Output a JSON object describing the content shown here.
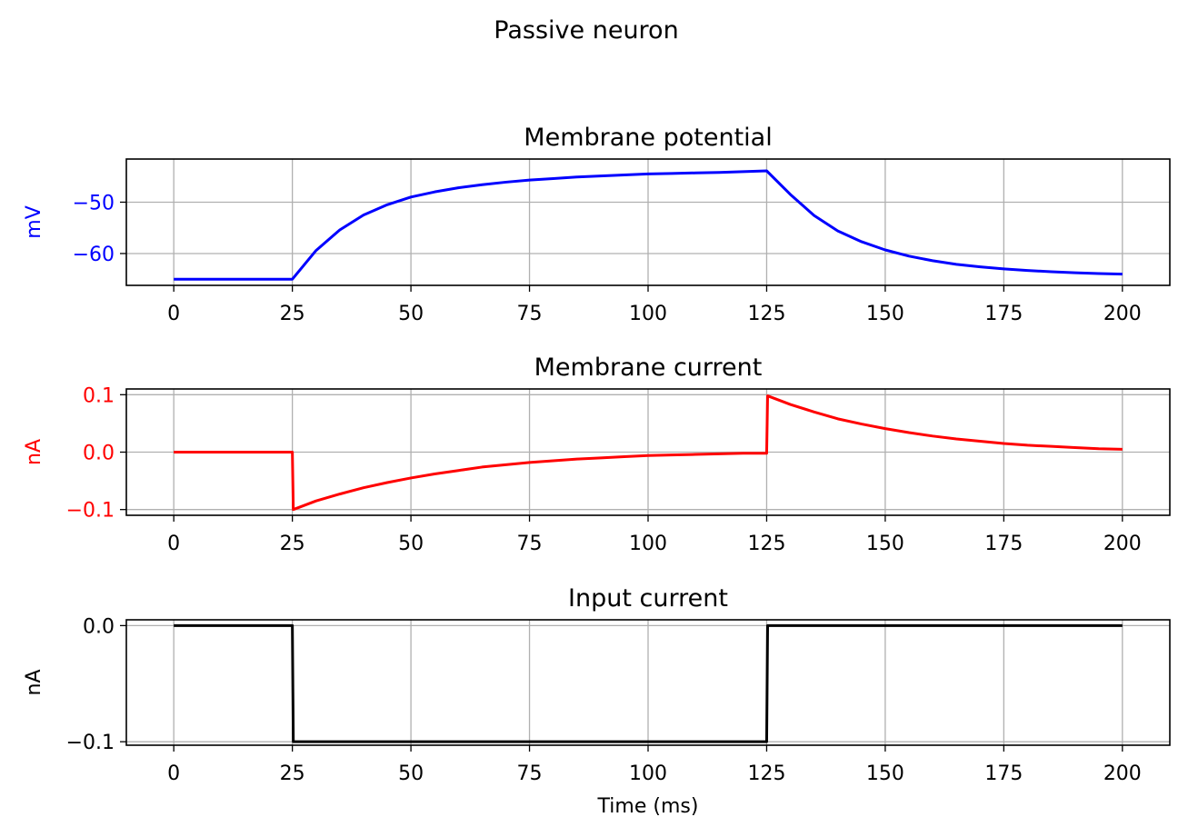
{
  "figure": {
    "title": "Passive neuron"
  },
  "chart_data": [
    {
      "type": "line",
      "title": "Membrane potential",
      "xlabel": "",
      "ylabel": "mV",
      "ylabel_color": "#0000ff",
      "tick_color": "#0000ff",
      "line_color": "#0000ff",
      "grid": true,
      "xlim": [
        -10,
        210
      ],
      "ylim": [
        -66.2,
        -41.6
      ],
      "xticks": [
        0,
        25,
        50,
        75,
        100,
        125,
        150,
        175,
        200
      ],
      "yticks": [
        -60,
        -50
      ],
      "ytick_labels": [
        "−60",
        "−50"
      ],
      "series": [
        {
          "x": [
            0,
            25,
            30,
            35,
            40,
            45,
            50,
            55,
            60,
            65,
            70,
            75,
            80,
            85,
            90,
            95,
            100,
            105,
            110,
            115,
            120,
            125,
            130,
            135,
            140,
            145,
            150,
            155,
            160,
            165,
            170,
            175,
            180,
            185,
            190,
            195,
            200
          ],
          "values": [
            -65,
            -65,
            -59.4,
            -55.4,
            -52.5,
            -50.5,
            -49,
            -48,
            -47.2,
            -46.6,
            -46.1,
            -45.7,
            -45.4,
            -45.1,
            -44.9,
            -44.7,
            -44.5,
            -44.4,
            -44.3,
            -44.2,
            -44.05,
            -43.9,
            -48.5,
            -52.6,
            -55.6,
            -57.7,
            -59.3,
            -60.5,
            -61.4,
            -62.1,
            -62.6,
            -63.0,
            -63.3,
            -63.55,
            -63.75,
            -63.9,
            -64.0
          ]
        }
      ]
    },
    {
      "type": "line",
      "title": "Membrane current",
      "xlabel": "",
      "ylabel": "nA",
      "ylabel_color": "#ff0000",
      "tick_color": "#ff0000",
      "line_color": "#ff0000",
      "grid": true,
      "xlim": [
        -10,
        210
      ],
      "ylim": [
        -0.11,
        0.11
      ],
      "xticks": [
        0,
        25,
        50,
        75,
        100,
        125,
        150,
        175,
        200
      ],
      "yticks": [
        -0.1,
        0.0,
        0.1
      ],
      "ytick_labels": [
        "−0.1",
        "0.0",
        "0.1"
      ],
      "series": [
        {
          "x": [
            0,
            25,
            25.2,
            30,
            35,
            40,
            45,
            50,
            55,
            60,
            65,
            70,
            75,
            80,
            85,
            90,
            95,
            100,
            105,
            110,
            115,
            120,
            125,
            125.2,
            130,
            135,
            140,
            145,
            150,
            155,
            160,
            165,
            170,
            175,
            180,
            185,
            190,
            195,
            200
          ],
          "values": [
            0,
            0,
            -0.1,
            -0.085,
            -0.073,
            -0.062,
            -0.053,
            -0.045,
            -0.038,
            -0.032,
            -0.026,
            -0.022,
            -0.018,
            -0.015,
            -0.012,
            -0.01,
            -0.008,
            -0.006,
            -0.005,
            -0.004,
            -0.003,
            -0.002,
            -0.002,
            0.098,
            0.083,
            0.07,
            0.058,
            0.049,
            0.041,
            0.034,
            0.028,
            0.023,
            0.019,
            0.015,
            0.012,
            0.01,
            0.008,
            0.006,
            0.005
          ]
        }
      ]
    },
    {
      "type": "line",
      "title": "Input current",
      "xlabel": "Time (ms)",
      "ylabel": "nA",
      "ylabel_color": "#000000",
      "tick_color": "#000000",
      "line_color": "#000000",
      "grid": true,
      "xlim": [
        -10,
        210
      ],
      "ylim": [
        -0.103,
        0.005
      ],
      "xticks": [
        0,
        25,
        50,
        75,
        100,
        125,
        150,
        175,
        200
      ],
      "yticks": [
        -0.1,
        0.0
      ],
      "ytick_labels": [
        "−0.1",
        "0.0"
      ],
      "series": [
        {
          "x": [
            0,
            25,
            25.2,
            125,
            125.2,
            200
          ],
          "values": [
            0,
            0,
            -0.1,
            -0.1,
            0,
            0
          ]
        }
      ]
    }
  ]
}
